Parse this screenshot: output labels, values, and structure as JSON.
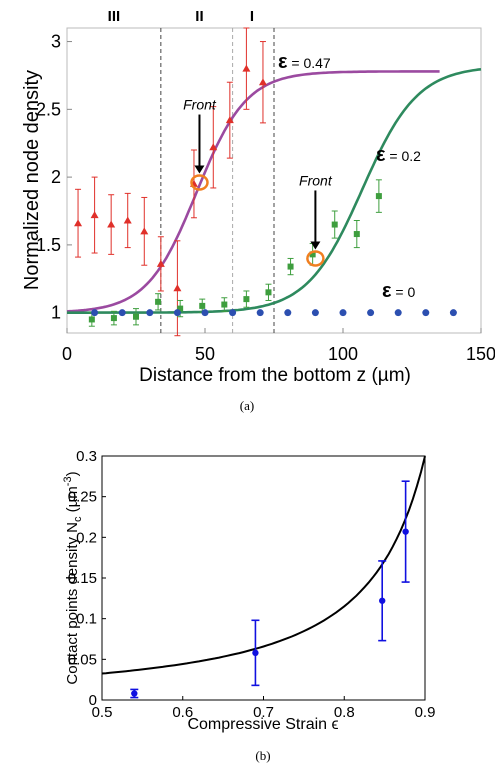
{
  "chart_data": [
    {
      "type": "scatter",
      "caption": "(a)",
      "xlabel": "Distance from the bottom z (µm)",
      "ylabel": "Normalized node density",
      "xlim": [
        0,
        150
      ],
      "ylim": [
        0.85,
        3.1
      ],
      "x_ticks": [
        "0",
        "50",
        "100",
        "150"
      ],
      "y_ticks": [
        "1",
        "1.5",
        "2",
        "2.5",
        "3"
      ],
      "region_labels": [
        {
          "text": "III",
          "x": 17
        },
        {
          "text": "II",
          "x": 48
        },
        {
          "text": "I",
          "x": 67
        }
      ],
      "vlines": [
        34,
        60,
        75
      ],
      "front_label": "Front",
      "series": [
        {
          "label": "ε = 0.47",
          "color": "#9b4aa0",
          "marker": "triangle",
          "marker_color": "#e0302a",
          "points": [
            {
              "x": 4,
              "y": 1.66,
              "err": 0.25
            },
            {
              "x": 10,
              "y": 1.72,
              "err": 0.28
            },
            {
              "x": 16,
              "y": 1.65,
              "err": 0.22
            },
            {
              "x": 22,
              "y": 1.68,
              "err": 0.2
            },
            {
              "x": 28,
              "y": 1.6,
              "err": 0.25
            },
            {
              "x": 34,
              "y": 1.36,
              "err": 0.2
            },
            {
              "x": 40,
              "y": 1.18,
              "err": 0.35
            },
            {
              "x": 46,
              "y": 1.95,
              "err": 0.25
            },
            {
              "x": 53,
              "y": 2.22,
              "err": 0.3
            },
            {
              "x": 59,
              "y": 2.42,
              "err": 0.28
            },
            {
              "x": 65,
              "y": 2.8,
              "err": 0.3
            },
            {
              "x": 71,
              "y": 2.7,
              "err": 0.3
            }
          ],
          "fit": {
            "low": 1.0,
            "high": 2.78,
            "center": 47,
            "width": 9,
            "x_end": 135
          },
          "front": {
            "x": 48,
            "y": 1.96
          }
        },
        {
          "label": "ε = 0.2",
          "color": "#2e8a5e",
          "marker": "square",
          "marker_color": "#3e9e3e",
          "points": [
            {
              "x": 9,
              "y": 0.95,
              "err": 0.05
            },
            {
              "x": 17,
              "y": 0.96,
              "err": 0.05
            },
            {
              "x": 25,
              "y": 0.97,
              "err": 0.06
            },
            {
              "x": 33,
              "y": 1.08,
              "err": 0.06
            },
            {
              "x": 41,
              "y": 1.03,
              "err": 0.06
            },
            {
              "x": 49,
              "y": 1.05,
              "err": 0.05
            },
            {
              "x": 57,
              "y": 1.06,
              "err": 0.05
            },
            {
              "x": 65,
              "y": 1.1,
              "err": 0.06
            },
            {
              "x": 73,
              "y": 1.15,
              "err": 0.06
            },
            {
              "x": 81,
              "y": 1.34,
              "err": 0.06
            },
            {
              "x": 89,
              "y": 1.43,
              "err": 0.08
            },
            {
              "x": 97,
              "y": 1.65,
              "err": 0.1
            },
            {
              "x": 105,
              "y": 1.58,
              "err": 0.1
            },
            {
              "x": 113,
              "y": 1.86,
              "err": 0.12
            }
          ],
          "fit": {
            "low": 1.0,
            "high": 2.82,
            "center": 107,
            "width": 10,
            "x_end": 150
          },
          "front": {
            "x": 90,
            "y": 1.4
          }
        },
        {
          "label": "ε = 0",
          "color": "#2c4fb0",
          "marker": "circle",
          "marker_color": "#2c4fb0",
          "points": [
            {
              "x": 10,
              "y": 1.0
            },
            {
              "x": 20,
              "y": 1.0
            },
            {
              "x": 30,
              "y": 1.0
            },
            {
              "x": 40,
              "y": 1.0
            },
            {
              "x": 50,
              "y": 1.0
            },
            {
              "x": 60,
              "y": 1.0
            },
            {
              "x": 70,
              "y": 1.0
            },
            {
              "x": 80,
              "y": 1.0
            },
            {
              "x": 90,
              "y": 1.0
            },
            {
              "x": 100,
              "y": 1.0
            },
            {
              "x": 110,
              "y": 1.0
            },
            {
              "x": 120,
              "y": 1.0
            },
            {
              "x": 130,
              "y": 1.0
            },
            {
              "x": 140,
              "y": 1.0
            }
          ]
        }
      ]
    },
    {
      "type": "scatter",
      "caption": "(b)",
      "xlabel": "Compressive Strain ϵ",
      "ylabel": "Contact points density N",
      "ylabel_sub": "c",
      "ylabel_unit": " (µm",
      "ylabel_sup": "-3",
      "ylabel_close": ")",
      "xlim": [
        0.5,
        0.9
      ],
      "ylim": [
        0,
        0.3
      ],
      "x_ticks": [
        "0.5",
        "0.6",
        "0.7",
        "0.8",
        "0.9"
      ],
      "y_ticks": [
        "0",
        "0.05",
        "0.1",
        "0.15",
        "0.2",
        "0.25",
        "0.3"
      ],
      "points": [
        {
          "x": 0.54,
          "y": 0.008,
          "err": 0.005
        },
        {
          "x": 0.69,
          "y": 0.058,
          "err": 0.04
        },
        {
          "x": 0.847,
          "y": 0.122,
          "err": 0.049
        },
        {
          "x": 0.876,
          "y": 0.207,
          "err": 0.062
        }
      ],
      "point_color": "#1010e0",
      "curve": {
        "formula": "0.0125*(1-x)^-1.38",
        "color": "#000000"
      }
    }
  ]
}
